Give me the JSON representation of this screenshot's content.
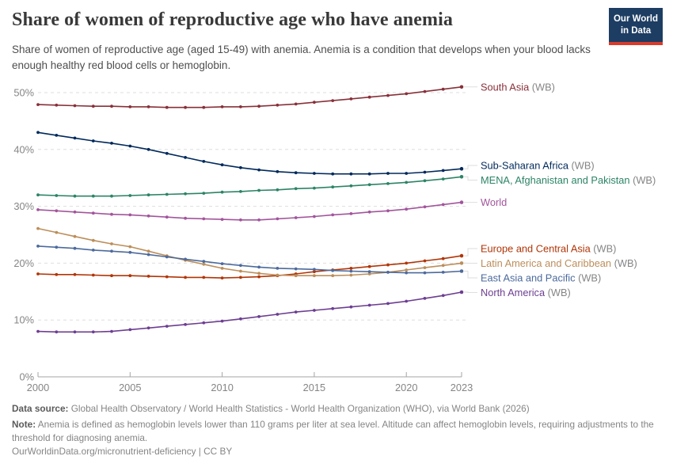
{
  "header": {
    "title": "Share of women of reproductive age who have anemia",
    "subtitle": "Share of women of reproductive age (aged 15-49) with anemia. Anemia is a condition that develops when your blood lacks enough healthy red blood cells or hemoglobin."
  },
  "logo": {
    "line1": "Our World",
    "line2": "in Data",
    "bg_color": "#1d3d63",
    "bar_color": "#d93b2b"
  },
  "chart_data": {
    "type": "line",
    "title": "Share of women of reproductive age who have anemia",
    "xlabel": "",
    "ylabel": "",
    "grid": true,
    "legend_position": "right-of-line-ends",
    "ylim": [
      0,
      52
    ],
    "y_tick_suffix": "%",
    "yticks": [
      0,
      10,
      20,
      30,
      40,
      50
    ],
    "xticks": [
      2000,
      2005,
      2010,
      2015,
      2020,
      2023
    ],
    "x": [
      2000,
      2001,
      2002,
      2003,
      2004,
      2005,
      2006,
      2007,
      2008,
      2009,
      2010,
      2011,
      2012,
      2013,
      2014,
      2015,
      2016,
      2017,
      2018,
      2019,
      2020,
      2021,
      2022,
      2023
    ],
    "series": [
      {
        "name": "South Asia",
        "suffix": "(WB)",
        "color": "#883039",
        "values": [
          47.9,
          47.8,
          47.7,
          47.6,
          47.6,
          47.5,
          47.5,
          47.4,
          47.4,
          47.4,
          47.5,
          47.5,
          47.6,
          47.8,
          48.0,
          48.3,
          48.6,
          48.9,
          49.2,
          49.5,
          49.8,
          50.2,
          50.6,
          51.0
        ]
      },
      {
        "name": "Sub-Saharan Africa",
        "suffix": "(WB)",
        "color": "#00295b",
        "values": [
          43.0,
          42.5,
          42.0,
          41.5,
          41.1,
          40.6,
          40.0,
          39.3,
          38.6,
          37.9,
          37.3,
          36.8,
          36.4,
          36.1,
          35.9,
          35.8,
          35.7,
          35.7,
          35.7,
          35.8,
          35.8,
          36.0,
          36.3,
          36.6
        ]
      },
      {
        "name": "MENA, Afghanistan and Pakistan",
        "suffix": "(WB)",
        "color": "#2c8465",
        "values": [
          32.0,
          31.9,
          31.8,
          31.8,
          31.8,
          31.9,
          32.0,
          32.1,
          32.2,
          32.3,
          32.5,
          32.6,
          32.8,
          32.9,
          33.1,
          33.2,
          33.4,
          33.6,
          33.8,
          34.0,
          34.2,
          34.5,
          34.8,
          35.2
        ]
      },
      {
        "name": "World",
        "suffix": "",
        "color": "#a2559c",
        "values": [
          29.4,
          29.2,
          29.0,
          28.8,
          28.6,
          28.5,
          28.3,
          28.1,
          27.9,
          27.8,
          27.7,
          27.6,
          27.6,
          27.8,
          28.0,
          28.2,
          28.5,
          28.7,
          29.0,
          29.2,
          29.5,
          29.9,
          30.3,
          30.7
        ]
      },
      {
        "name": "Europe and Central Asia",
        "suffix": "(WB)",
        "color": "#b13507",
        "values": [
          18.1,
          18.0,
          18.0,
          17.9,
          17.8,
          17.8,
          17.7,
          17.6,
          17.5,
          17.5,
          17.4,
          17.5,
          17.6,
          17.8,
          18.1,
          18.5,
          18.8,
          19.1,
          19.4,
          19.7,
          20.0,
          20.4,
          20.8,
          21.3
        ]
      },
      {
        "name": "Latin America and Caribbean",
        "suffix": "(WB)",
        "color": "#bc8e5a",
        "values": [
          26.1,
          25.4,
          24.7,
          24.0,
          23.4,
          22.9,
          22.1,
          21.3,
          20.5,
          19.8,
          19.1,
          18.6,
          18.2,
          17.9,
          17.8,
          17.8,
          17.8,
          17.9,
          18.1,
          18.4,
          18.8,
          19.2,
          19.6,
          20.0
        ]
      },
      {
        "name": "East Asia and Pacific",
        "suffix": "(WB)",
        "color": "#4c6a9c",
        "values": [
          23.0,
          22.8,
          22.6,
          22.3,
          22.1,
          21.9,
          21.5,
          21.1,
          20.7,
          20.3,
          19.9,
          19.6,
          19.3,
          19.1,
          19.0,
          18.9,
          18.7,
          18.6,
          18.5,
          18.4,
          18.3,
          18.3,
          18.4,
          18.6
        ]
      },
      {
        "name": "North America",
        "suffix": "(WB)",
        "color": "#6d3e91",
        "values": [
          8.0,
          7.9,
          7.9,
          7.9,
          8.0,
          8.3,
          8.6,
          8.9,
          9.2,
          9.5,
          9.8,
          10.2,
          10.6,
          11.0,
          11.4,
          11.7,
          12.0,
          12.3,
          12.6,
          12.9,
          13.3,
          13.8,
          14.3,
          14.9
        ]
      }
    ],
    "colors": {
      "gridline": "#dedede",
      "axis": "#a5a5a5",
      "tick_label": "#858585"
    }
  },
  "footer": {
    "datasource_label": "Data source:",
    "datasource_text": " Global Health Observatory / World Health Statistics - World Health Organization (WHO), via World Bank (2026)",
    "note_label": "Note:",
    "note_text": " Anemia is defined as hemoglobin levels lower than 110 grams per liter at sea level. Altitude can affect hemoglobin levels, requiring adjustments to the threshold for diagnosing anemia.",
    "url_text": "OurWorldinData.org/micronutrient-deficiency | CC BY"
  }
}
